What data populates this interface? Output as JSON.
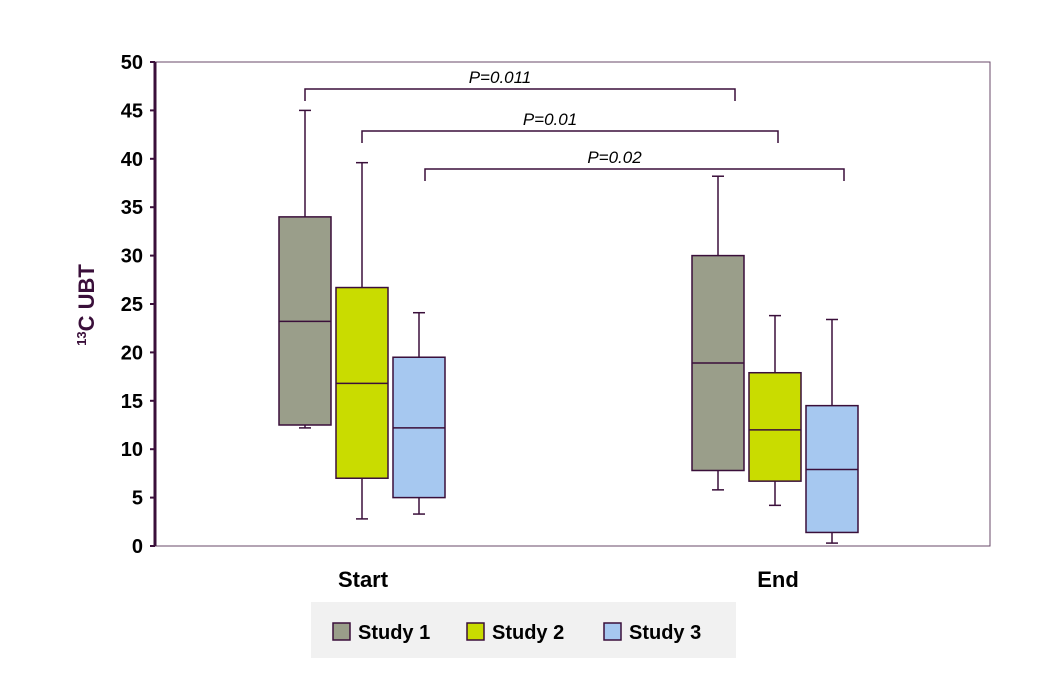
{
  "chart_data": {
    "type": "boxplot",
    "ylabel_sup": "13",
    "ylabel_main": "C UBT",
    "ylim": [
      0,
      50
    ],
    "yticks": [
      0,
      5,
      10,
      15,
      20,
      25,
      30,
      35,
      40,
      45,
      50
    ],
    "categories": [
      "Start",
      "End"
    ],
    "series": [
      {
        "name": "Study 1",
        "color": "#9a9e8a",
        "boxes": [
          {
            "min": 12.2,
            "q1": 12.5,
            "median": 23.2,
            "q3": 34.0,
            "max": 45.0
          },
          {
            "min": 5.8,
            "q1": 7.8,
            "median": 18.9,
            "q3": 30.0,
            "max": 38.2
          }
        ]
      },
      {
        "name": "Study 2",
        "color": "#c9dc00",
        "boxes": [
          {
            "min": 2.8,
            "q1": 7.0,
            "median": 16.8,
            "q3": 26.7,
            "max": 39.6
          },
          {
            "min": 4.2,
            "q1": 6.7,
            "median": 12.0,
            "q3": 17.9,
            "max": 23.8
          }
        ]
      },
      {
        "name": "Study 3",
        "color": "#a6c8f0",
        "boxes": [
          {
            "min": 3.3,
            "q1": 5.0,
            "median": 12.2,
            "q3": 19.5,
            "max": 24.1
          },
          {
            "min": 0.3,
            "q1": 1.4,
            "median": 7.9,
            "q3": 14.5,
            "max": 23.4
          }
        ]
      }
    ],
    "annotations": [
      {
        "text": "P=0.011",
        "series": 0
      },
      {
        "text": "P=0.01",
        "series": 1
      },
      {
        "text": "P=0.02",
        "series": 2
      }
    ],
    "legend_position": "bottom",
    "grid": false
  }
}
